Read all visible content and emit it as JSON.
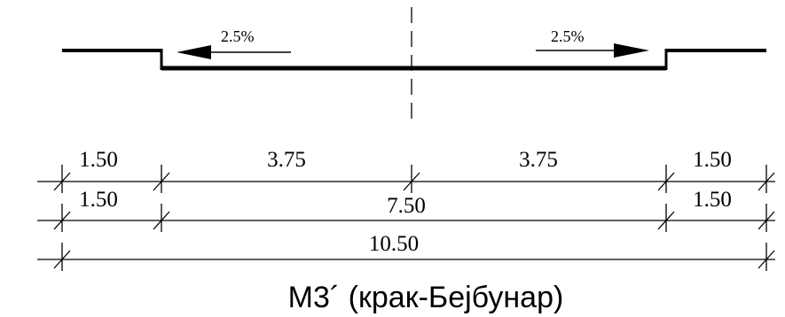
{
  "slopes": {
    "left": "2.5%",
    "right": "2.5%"
  },
  "dimensions": {
    "row1": [
      "1.50",
      "3.75",
      "3.75",
      "1.50"
    ],
    "row2": [
      "1.50",
      "7.50",
      "1.50"
    ],
    "row3": [
      "10.50"
    ]
  },
  "caption": "М3´ (крак-Бејбунар)",
  "colors": {
    "ink": "#000000",
    "background": "#ffffff"
  }
}
